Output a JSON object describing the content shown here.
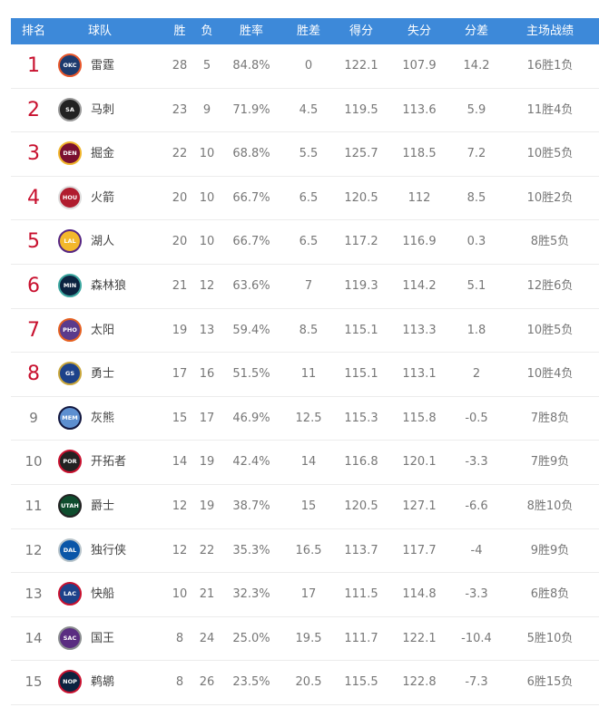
{
  "header": [
    "排名",
    "球队",
    "胜",
    "负",
    "胜率",
    "胜差",
    "得分",
    "失分",
    "分差",
    "主场战绩"
  ],
  "rows": [
    {
      "rank": "1",
      "team": "雷霆",
      "abbr": "OKC",
      "w": "28",
      "l": "5",
      "pct": "84.8%",
      "gb": "0",
      "pf": "122.1",
      "pa": "107.9",
      "diff": "14.2",
      "home": "16胜1负",
      "bg": "#1d3b6e",
      "ring": "#e8562a"
    },
    {
      "rank": "2",
      "team": "马刺",
      "abbr": "SA",
      "w": "23",
      "l": "9",
      "pct": "71.9%",
      "gb": "4.5",
      "pf": "119.5",
      "pa": "113.6",
      "diff": "5.9",
      "home": "11胜4负",
      "bg": "#222",
      "ring": "#999"
    },
    {
      "rank": "3",
      "team": "掘金",
      "abbr": "DEN",
      "w": "22",
      "l": "10",
      "pct": "68.8%",
      "gb": "5.5",
      "pf": "125.7",
      "pa": "118.5",
      "diff": "7.2",
      "home": "10胜5负",
      "bg": "#7a1030",
      "ring": "#f0b52b"
    },
    {
      "rank": "4",
      "team": "火箭",
      "abbr": "HOU",
      "w": "20",
      "l": "10",
      "pct": "66.7%",
      "gb": "6.5",
      "pf": "120.5",
      "pa": "112",
      "diff": "8.5",
      "home": "10胜2负",
      "bg": "#b01c2e",
      "ring": "#ddd"
    },
    {
      "rank": "5",
      "team": "湖人",
      "abbr": "LAL",
      "w": "20",
      "l": "10",
      "pct": "66.7%",
      "gb": "6.5",
      "pf": "117.2",
      "pa": "116.9",
      "diff": "0.3",
      "home": "8胜5负",
      "bg": "#f3b82c",
      "ring": "#552583"
    },
    {
      "rank": "6",
      "team": "森林狼",
      "abbr": "MIN",
      "w": "21",
      "l": "12",
      "pct": "63.6%",
      "gb": "7",
      "pf": "119.3",
      "pa": "114.2",
      "diff": "5.1",
      "home": "12胜6负",
      "bg": "#0c2340",
      "ring": "#3ca7a0"
    },
    {
      "rank": "7",
      "team": "太阳",
      "abbr": "PHO",
      "w": "19",
      "l": "13",
      "pct": "59.4%",
      "gb": "8.5",
      "pf": "115.1",
      "pa": "113.3",
      "diff": "1.8",
      "home": "10胜5负",
      "bg": "#5b3b8c",
      "ring": "#e56020"
    },
    {
      "rank": "8",
      "team": "勇士",
      "abbr": "GS",
      "w": "17",
      "l": "16",
      "pct": "51.5%",
      "gb": "11",
      "pf": "115.1",
      "pa": "113.1",
      "diff": "2",
      "home": "10胜4负",
      "bg": "#1d428a",
      "ring": "#c9a63a"
    },
    {
      "rank": "9",
      "team": "灰熊",
      "abbr": "MEM",
      "w": "15",
      "l": "17",
      "pct": "46.9%",
      "gb": "12.5",
      "pf": "115.3",
      "pa": "115.8",
      "diff": "-0.5",
      "home": "7胜8负",
      "bg": "#5d8fd0",
      "ring": "#12173f"
    },
    {
      "rank": "10",
      "team": "开拓者",
      "abbr": "POR",
      "w": "14",
      "l": "19",
      "pct": "42.4%",
      "gb": "14",
      "pf": "116.8",
      "pa": "120.1",
      "diff": "-3.3",
      "home": "7胜9负",
      "bg": "#222",
      "ring": "#c8102e"
    },
    {
      "rank": "11",
      "team": "爵士",
      "abbr": "UTAH",
      "w": "12",
      "l": "19",
      "pct": "38.7%",
      "gb": "15",
      "pf": "120.5",
      "pa": "127.1",
      "diff": "-6.6",
      "home": "8胜10负",
      "bg": "#0f4d2e",
      "ring": "#222"
    },
    {
      "rank": "12",
      "team": "独行侠",
      "abbr": "DAL",
      "w": "12",
      "l": "22",
      "pct": "35.3%",
      "gb": "16.5",
      "pf": "113.7",
      "pa": "117.7",
      "diff": "-4",
      "home": "9胜9负",
      "bg": "#0a56a8",
      "ring": "#b8c4ca"
    },
    {
      "rank": "13",
      "team": "快船",
      "abbr": "LAC",
      "w": "10",
      "l": "21",
      "pct": "32.3%",
      "gb": "17",
      "pf": "111.5",
      "pa": "114.8",
      "diff": "-3.3",
      "home": "6胜8负",
      "bg": "#1d428a",
      "ring": "#c8102e"
    },
    {
      "rank": "14",
      "team": "国王",
      "abbr": "SAC",
      "w": "8",
      "l": "24",
      "pct": "25.0%",
      "gb": "19.5",
      "pf": "111.7",
      "pa": "122.1",
      "diff": "-10.4",
      "home": "5胜10负",
      "bg": "#5a2d81",
      "ring": "#8a8d8f"
    },
    {
      "rank": "15",
      "team": "鹈鹕",
      "abbr": "NOP",
      "w": "8",
      "l": "26",
      "pct": "23.5%",
      "gb": "20.5",
      "pf": "115.5",
      "pa": "122.8",
      "diff": "-7.3",
      "home": "6胜15负",
      "bg": "#0c2340",
      "ring": "#c8102e"
    }
  ]
}
